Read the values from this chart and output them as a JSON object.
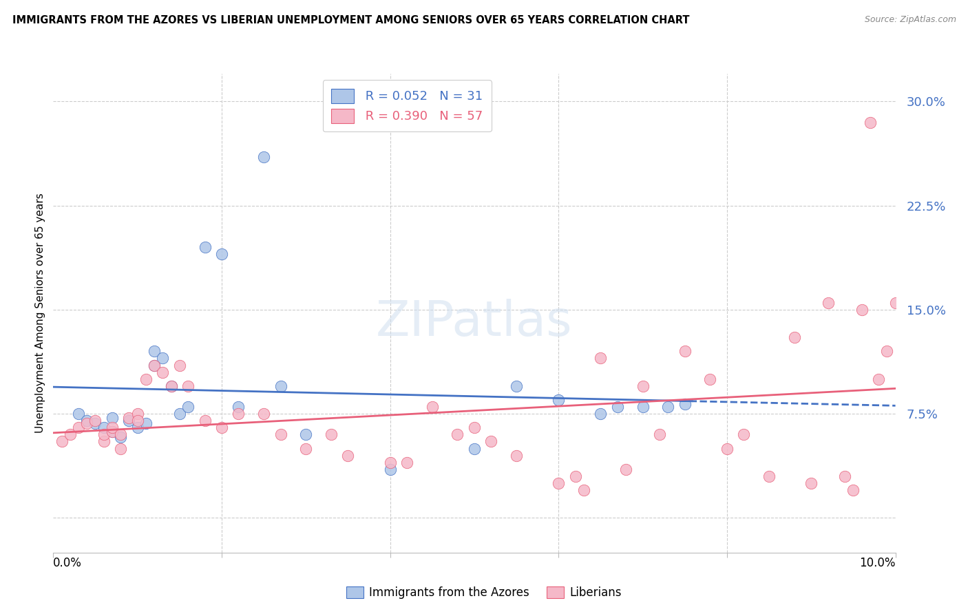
{
  "title": "IMMIGRANTS FROM THE AZORES VS LIBERIAN UNEMPLOYMENT AMONG SENIORS OVER 65 YEARS CORRELATION CHART",
  "source": "Source: ZipAtlas.com",
  "ylabel": "Unemployment Among Seniors over 65 years",
  "legend_label1": "Immigrants from the Azores",
  "legend_label2": "Liberians",
  "R1": "0.052",
  "N1": "31",
  "R2": "0.390",
  "N2": "57",
  "color_blue": "#aec6e8",
  "color_pink": "#f5b8c8",
  "line_blue": "#4472c4",
  "line_pink": "#e8607a",
  "text_color_blue": "#4472c4",
  "text_color_pink": "#e8607a",
  "background": "#ffffff",
  "grid_color": "#cccccc",
  "xlim": [
    0.0,
    0.1
  ],
  "ylim": [
    -0.025,
    0.32
  ],
  "ytick_vals": [
    0.0,
    0.075,
    0.15,
    0.225,
    0.3
  ],
  "ytick_labels": [
    "",
    "7.5%",
    "15.0%",
    "22.5%",
    "30.0%"
  ],
  "watermark": "ZIPatlas",
  "azores_x": [
    0.003,
    0.004,
    0.005,
    0.006,
    0.007,
    0.007,
    0.008,
    0.009,
    0.01,
    0.011,
    0.012,
    0.012,
    0.013,
    0.014,
    0.015,
    0.016,
    0.018,
    0.02,
    0.022,
    0.025,
    0.027,
    0.03,
    0.04,
    0.05,
    0.055,
    0.06,
    0.065,
    0.067,
    0.07,
    0.073,
    0.075
  ],
  "azores_y": [
    0.075,
    0.07,
    0.068,
    0.065,
    0.072,
    0.062,
    0.058,
    0.07,
    0.065,
    0.068,
    0.11,
    0.12,
    0.115,
    0.095,
    0.075,
    0.08,
    0.195,
    0.19,
    0.08,
    0.26,
    0.095,
    0.06,
    0.035,
    0.05,
    0.095,
    0.085,
    0.075,
    0.08,
    0.08,
    0.08,
    0.082
  ],
  "liberia_x": [
    0.001,
    0.002,
    0.003,
    0.004,
    0.005,
    0.006,
    0.006,
    0.007,
    0.007,
    0.008,
    0.008,
    0.009,
    0.01,
    0.01,
    0.011,
    0.012,
    0.013,
    0.014,
    0.015,
    0.016,
    0.018,
    0.02,
    0.022,
    0.025,
    0.027,
    0.03,
    0.033,
    0.035,
    0.04,
    0.042,
    0.045,
    0.048,
    0.05,
    0.052,
    0.055,
    0.06,
    0.062,
    0.063,
    0.065,
    0.068,
    0.07,
    0.072,
    0.075,
    0.078,
    0.08,
    0.082,
    0.085,
    0.088,
    0.09,
    0.092,
    0.094,
    0.095,
    0.096,
    0.097,
    0.098,
    0.099,
    0.1
  ],
  "liberia_y": [
    0.055,
    0.06,
    0.065,
    0.068,
    0.07,
    0.055,
    0.06,
    0.062,
    0.065,
    0.06,
    0.05,
    0.072,
    0.075,
    0.07,
    0.1,
    0.11,
    0.105,
    0.095,
    0.11,
    0.095,
    0.07,
    0.065,
    0.075,
    0.075,
    0.06,
    0.05,
    0.06,
    0.045,
    0.04,
    0.04,
    0.08,
    0.06,
    0.065,
    0.055,
    0.045,
    0.025,
    0.03,
    0.02,
    0.115,
    0.035,
    0.095,
    0.06,
    0.12,
    0.1,
    0.05,
    0.06,
    0.03,
    0.13,
    0.025,
    0.155,
    0.03,
    0.02,
    0.15,
    0.285,
    0.1,
    0.12,
    0.155
  ]
}
